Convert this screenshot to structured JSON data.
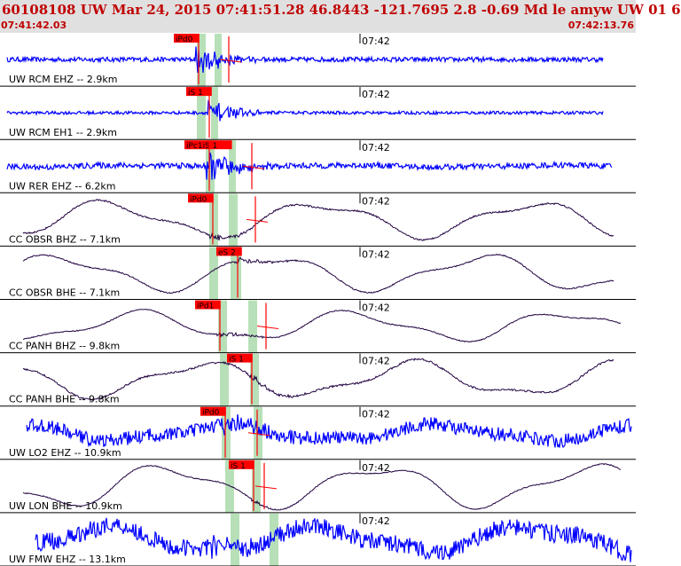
{
  "header": {
    "title": "60108108 UW Mar 24, 2015 07:41:51.28   46.8443 -121.7695  2.8 -0.69 Md le amyw UW 01    6",
    "start_time": "07:41:42.03",
    "end_time": "07:42:13.76"
  },
  "colors": {
    "header_text": "#c00000",
    "header_bg": "#e0e0e0",
    "blue_trace": "#0000ff",
    "dark_trace": "#200040",
    "pick_marker": "#ff0000",
    "highlight": "#b8e0b8"
  },
  "chart_data": {
    "type": "line",
    "time_window": [
      "07:41:42.03",
      "07:42:13.76"
    ],
    "tick_label": "07:42",
    "channels": [
      {
        "label": "UW RCM EHZ -- 2.9km",
        "pick": "iPd0",
        "color": "blue"
      },
      {
        "label": "UW RCM EH1 -- 2.9km",
        "pick": "iS 1",
        "color": "blue"
      },
      {
        "label": "UW RER EHZ -- 6.2km",
        "pick": "iPc1iS 1",
        "color": "blue"
      },
      {
        "label": "CC OBSR BHZ -- 7.1km",
        "pick": "iPd0",
        "color": "dark"
      },
      {
        "label": "CC OBSR BHE -- 7.1km",
        "pick": "eS 2",
        "color": "dark"
      },
      {
        "label": "CC PANH BHZ -- 9.8km",
        "pick": "iPd1",
        "color": "dark"
      },
      {
        "label": "CC PANH BHE -- 9.8km",
        "pick": "iS 1",
        "color": "dark"
      },
      {
        "label": "UW LO2 EHZ -- 10.9km",
        "pick": "iPd0",
        "color": "blue"
      },
      {
        "label": "UW LON BHE -- 10.9km",
        "pick": "iS 1",
        "color": "dark"
      },
      {
        "label": "UW FMW EHZ -- 13.1km",
        "pick": "",
        "color": "blue"
      }
    ]
  }
}
